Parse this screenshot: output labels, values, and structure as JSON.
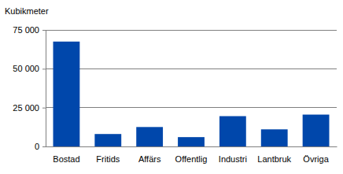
{
  "chart_data": {
    "type": "bar",
    "ylabel": "Kubikmeter",
    "categories": [
      "Bostad",
      "Fritids",
      "Affärs",
      "Offentlig",
      "Industri",
      "Lantbruk",
      "Övriga"
    ],
    "values": [
      67500,
      8000,
      12500,
      6000,
      19500,
      11000,
      20500
    ],
    "color": "#0047ab",
    "ylim": [
      0,
      75000
    ],
    "yticks": [
      0,
      {
        "value": 25000,
        "label": "25 000"
      },
      {
        "value": 50000,
        "label": "50 000"
      },
      {
        "value": 75000,
        "label": "75 000"
      }
    ],
    "grid": true
  }
}
